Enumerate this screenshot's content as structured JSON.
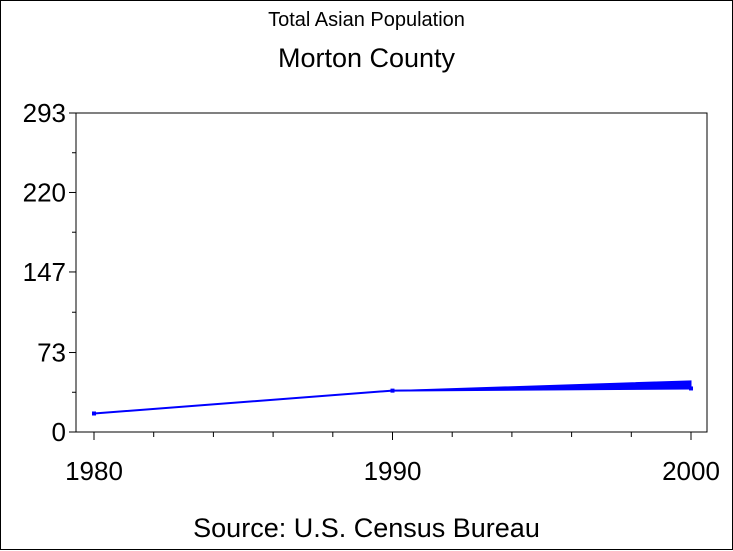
{
  "titles": {
    "line1": "Total Asian Population",
    "line2": "Morton County"
  },
  "footnote": "Source: U.S. Census Bureau",
  "chart_data": {
    "type": "line",
    "series": [
      {
        "values": [
          17,
          38,
          40
        ],
        "upper_values": [
          17,
          38,
          47
        ],
        "color": "#0000ff"
      }
    ],
    "x": [
      1980,
      1990,
      2000
    ],
    "xticks": [
      "1980",
      "1990",
      "2000"
    ],
    "yticks": [
      "0",
      "73",
      "147",
      "220",
      "293"
    ],
    "xlim": [
      1980,
      2000
    ],
    "ylim": [
      0,
      293
    ],
    "grid": false,
    "title": "Total Asian Population",
    "subtitle": "Morton County",
    "xlabel": "",
    "ylabel": ""
  }
}
